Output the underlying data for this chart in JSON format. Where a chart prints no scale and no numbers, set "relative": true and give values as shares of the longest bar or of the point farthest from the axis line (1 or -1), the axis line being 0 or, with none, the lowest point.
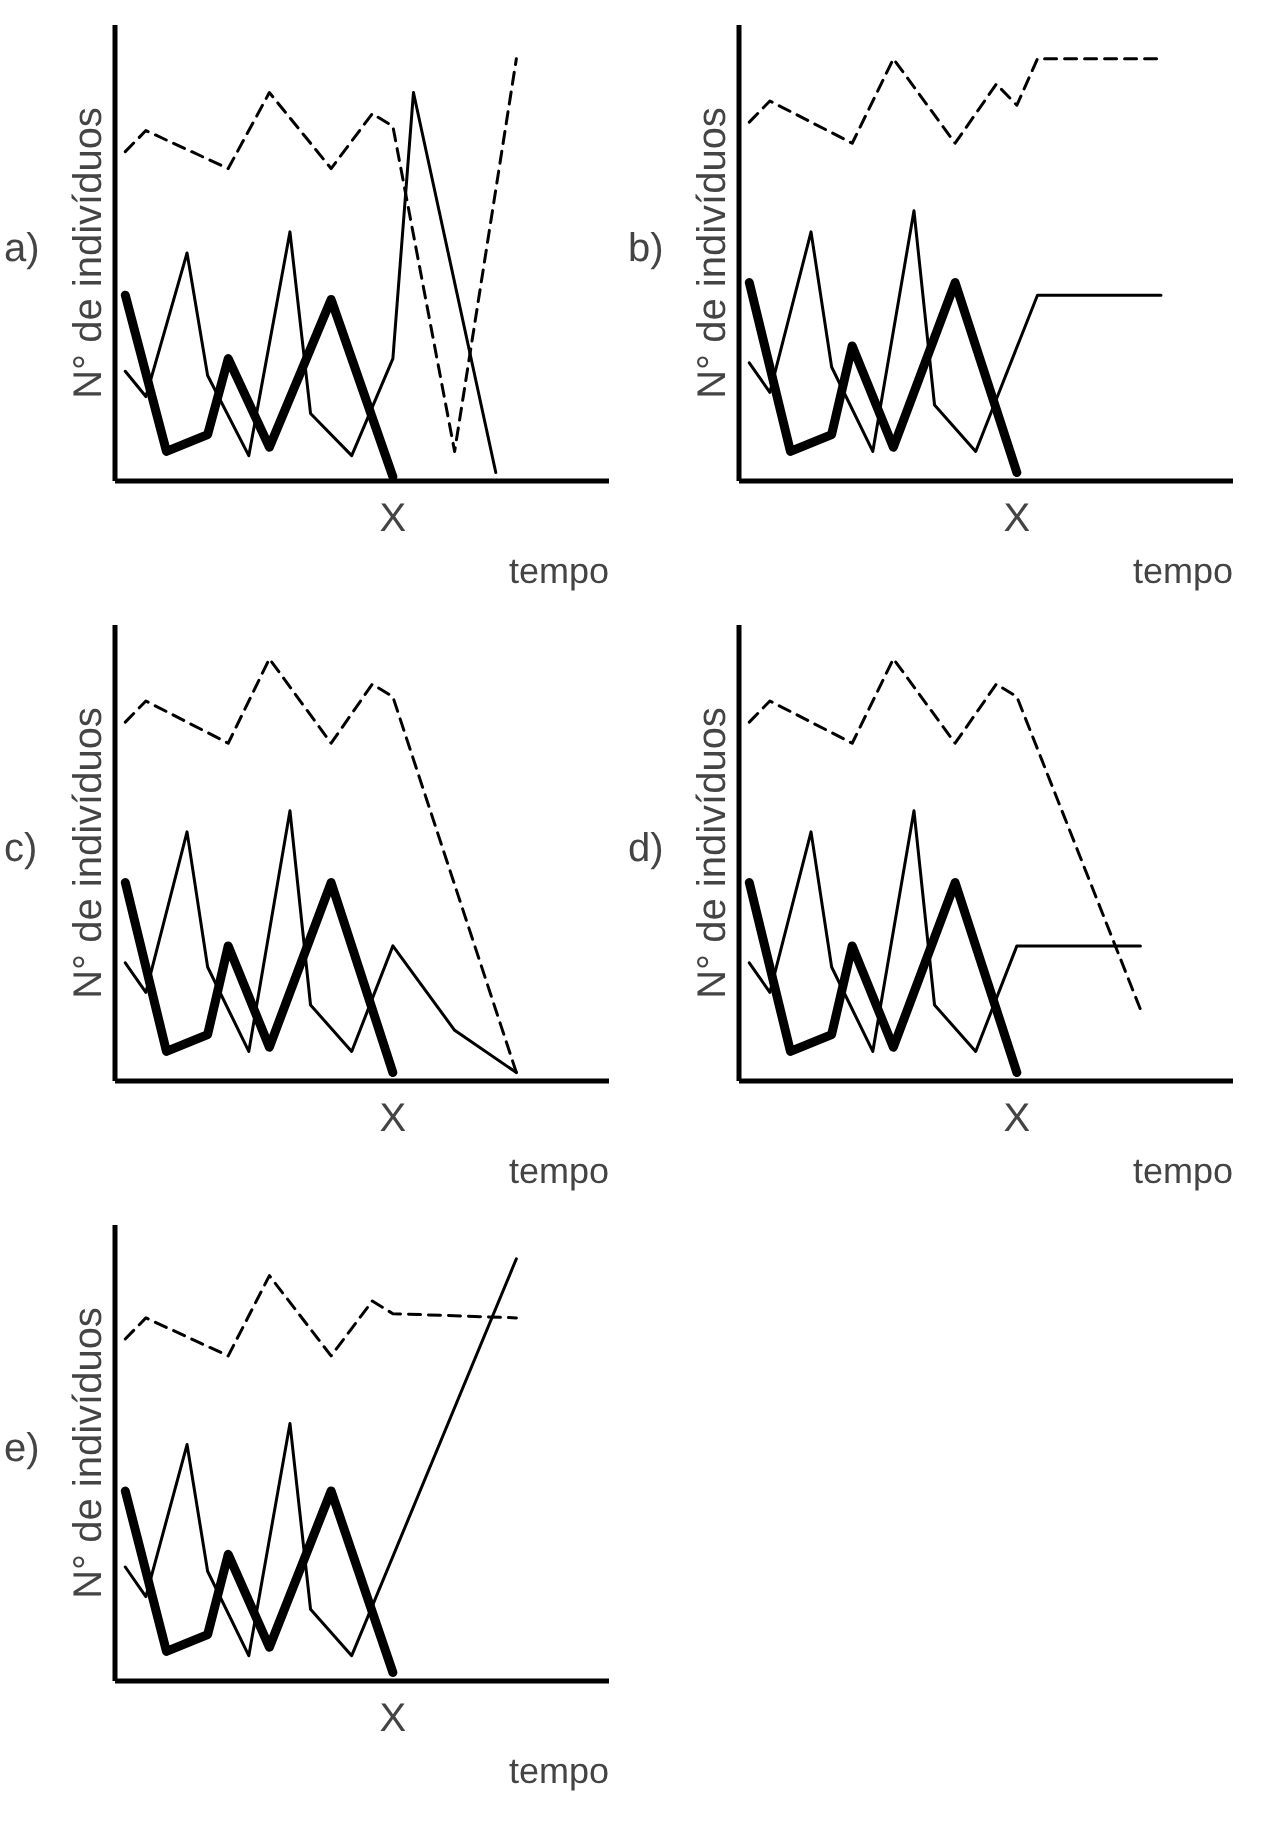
{
  "chart_data": [
    {
      "type": "line",
      "title": "a)",
      "xlabel": "tempo",
      "ylabel": "N° de indivíduos",
      "relative": true,
      "annotations": [
        "X"
      ],
      "categories": [
        null,
        null,
        null,
        null,
        null,
        null,
        null,
        null,
        null,
        null,
        null,
        null,
        null,
        null,
        null,
        null,
        null,
        null,
        null,
        null,
        null,
        null,
        null,
        null
      ],
      "series": [
        {
          "color": "#000000",
          "line_style": "dashed",
          "values": [
            0.78,
            0.83,
            null,
            null,
            null,
            0.74,
            null,
            0.92,
            null,
            null,
            0.74,
            null,
            0.87,
            0.84,
            null,
            null,
            0.07,
            null,
            null,
            1.0,
            null,
            null,
            null,
            null
          ]
        },
        {
          "color": "#000000",
          "line_style": "solid",
          "values": [
            0.26,
            0.2,
            null,
            0.54,
            0.25,
            null,
            0.06,
            null,
            0.59,
            0.16,
            null,
            0.06,
            null,
            0.29,
            0.92,
            null,
            null,
            null,
            0.02,
            null,
            null,
            null,
            null,
            null
          ]
        },
        {
          "color": "#000000",
          "line_style": "solid",
          "values": [
            0.44,
            null,
            0.07,
            null,
            0.11,
            0.29,
            null,
            0.08,
            null,
            null,
            0.43,
            null,
            null,
            0.01,
            null,
            null,
            null,
            null,
            null,
            null,
            null,
            null,
            null,
            null
          ]
        }
      ]
    },
    {
      "type": "line",
      "title": "b)",
      "xlabel": "tempo",
      "ylabel": "N° de indivíduos",
      "relative": true,
      "annotations": [
        "X"
      ],
      "categories": [
        null,
        null,
        null,
        null,
        null,
        null,
        null,
        null,
        null,
        null,
        null,
        null,
        null,
        null,
        null,
        null,
        null,
        null,
        null,
        null,
        null,
        null,
        null,
        null
      ],
      "series": [
        {
          "color": "#000000",
          "line_style": "dashed",
          "values": [
            0.85,
            0.9,
            null,
            null,
            null,
            0.8,
            null,
            1.0,
            null,
            null,
            0.8,
            null,
            0.94,
            0.89,
            1.0,
            null,
            null,
            null,
            null,
            null,
            1.0,
            null,
            null,
            null
          ]
        },
        {
          "color": "#000000",
          "line_style": "solid",
          "values": [
            0.28,
            0.21,
            null,
            0.59,
            0.27,
            null,
            0.07,
            null,
            0.64,
            0.18,
            null,
            0.07,
            null,
            null,
            0.44,
            null,
            null,
            null,
            null,
            null,
            0.44,
            null,
            null,
            null
          ]
        },
        {
          "color": "#000000",
          "line_style": "solid",
          "values": [
            0.47,
            null,
            0.07,
            null,
            0.11,
            0.32,
            null,
            0.08,
            null,
            null,
            0.47,
            null,
            null,
            0.02,
            null,
            null,
            null,
            null,
            null,
            null,
            null,
            null,
            null,
            null
          ]
        }
      ]
    },
    {
      "type": "line",
      "title": "c)",
      "xlabel": "tempo",
      "ylabel": "N° de indivíduos",
      "relative": true,
      "annotations": [
        "X"
      ],
      "categories": [
        null,
        null,
        null,
        null,
        null,
        null,
        null,
        null,
        null,
        null,
        null,
        null,
        null,
        null,
        null,
        null,
        null,
        null,
        null,
        null,
        null,
        null,
        null,
        null
      ],
      "series": [
        {
          "color": "#000000",
          "line_style": "dashed",
          "values": [
            0.85,
            0.9,
            null,
            null,
            null,
            0.8,
            null,
            1.0,
            null,
            null,
            0.8,
            null,
            0.94,
            0.91,
            null,
            null,
            null,
            null,
            null,
            0.02,
            null,
            null,
            null,
            null
          ]
        },
        {
          "color": "#000000",
          "line_style": "solid",
          "values": [
            0.28,
            0.21,
            null,
            0.59,
            0.27,
            null,
            0.07,
            null,
            0.64,
            0.18,
            null,
            0.07,
            null,
            0.32,
            null,
            null,
            0.12,
            null,
            null,
            0.02,
            null,
            null,
            null,
            null
          ]
        },
        {
          "color": "#000000",
          "line_style": "solid",
          "values": [
            0.47,
            null,
            0.07,
            null,
            0.11,
            0.32,
            null,
            0.08,
            null,
            null,
            0.47,
            null,
            null,
            0.02,
            null,
            null,
            null,
            null,
            null,
            null,
            null,
            null,
            null,
            null
          ]
        }
      ]
    },
    {
      "type": "line",
      "title": "d)",
      "xlabel": "tempo",
      "ylabel": "N° de indivíduos",
      "relative": true,
      "annotations": [
        "X"
      ],
      "categories": [
        null,
        null,
        null,
        null,
        null,
        null,
        null,
        null,
        null,
        null,
        null,
        null,
        null,
        null,
        null,
        null,
        null,
        null,
        null,
        null,
        null,
        null,
        null,
        null
      ],
      "series": [
        {
          "color": "#000000",
          "line_style": "dashed",
          "values": [
            0.85,
            0.9,
            null,
            null,
            null,
            0.8,
            null,
            1.0,
            null,
            null,
            0.8,
            null,
            0.94,
            0.91,
            null,
            null,
            null,
            null,
            null,
            0.17,
            null,
            null,
            null,
            null
          ]
        },
        {
          "color": "#000000",
          "line_style": "solid",
          "values": [
            0.28,
            0.21,
            null,
            0.59,
            0.27,
            null,
            0.07,
            null,
            0.64,
            0.18,
            null,
            0.07,
            null,
            0.32,
            null,
            null,
            null,
            null,
            null,
            0.32,
            null,
            null,
            null,
            null
          ]
        },
        {
          "color": "#000000",
          "line_style": "solid",
          "values": [
            0.47,
            null,
            0.07,
            null,
            0.11,
            0.32,
            null,
            0.08,
            null,
            null,
            0.47,
            null,
            null,
            0.02,
            null,
            null,
            null,
            null,
            null,
            null,
            null,
            null,
            null,
            null
          ]
        }
      ]
    },
    {
      "type": "line",
      "title": "e)",
      "xlabel": "tempo",
      "ylabel": "N° de indivíduos",
      "relative": true,
      "annotations": [
        "X"
      ],
      "categories": [
        null,
        null,
        null,
        null,
        null,
        null,
        null,
        null,
        null,
        null,
        null,
        null,
        null,
        null,
        null,
        null,
        null,
        null,
        null,
        null,
        null,
        null,
        null,
        null
      ],
      "series": [
        {
          "color": "#000000",
          "line_style": "dashed",
          "values": [
            0.81,
            0.86,
            null,
            null,
            null,
            0.77,
            null,
            0.96,
            null,
            null,
            0.77,
            null,
            0.9,
            0.87,
            null,
            null,
            null,
            null,
            null,
            0.86,
            null,
            null,
            null,
            null
          ]
        },
        {
          "color": "#000000",
          "line_style": "solid",
          "values": [
            0.27,
            0.2,
            null,
            0.56,
            0.26,
            null,
            0.06,
            null,
            0.61,
            0.17,
            null,
            0.06,
            null,
            null,
            null,
            null,
            null,
            null,
            null,
            1.0,
            null,
            null,
            null,
            null
          ]
        },
        {
          "color": "#000000",
          "line_style": "solid",
          "values": [
            0.45,
            null,
            0.07,
            null,
            0.11,
            0.3,
            null,
            0.08,
            null,
            null,
            0.45,
            null,
            null,
            0.02,
            null,
            null,
            null,
            null,
            null,
            null,
            null,
            null,
            null,
            null
          ]
        }
      ]
    }
  ]
}
